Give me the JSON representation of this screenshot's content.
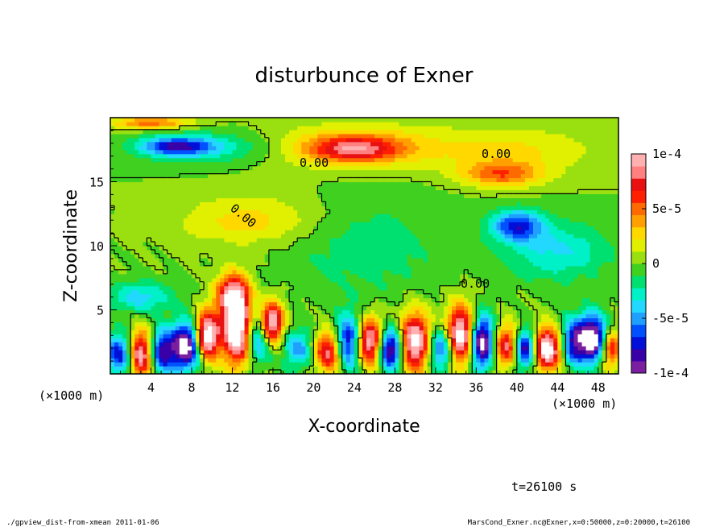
{
  "chart_data": {
    "type": "heatmap",
    "title": "disturbunce of Exner",
    "xlabel": "X-coordinate",
    "ylabel": "Z-coordinate",
    "x_unit_left": "(×1000 m)",
    "x_unit_right": "(×1000 m)",
    "xlim": [
      0,
      50
    ],
    "ylim": [
      0,
      20
    ],
    "x_ticks": [
      4,
      8,
      12,
      16,
      20,
      24,
      28,
      32,
      36,
      40,
      44,
      48
    ],
    "y_ticks": [
      5,
      10,
      15
    ],
    "colorbar": {
      "min": -0.0001,
      "max": 0.0001,
      "tick_values": [
        0.0001,
        5e-05,
        0,
        -5e-05,
        -0.0001
      ],
      "tick_labels": [
        "1e-4",
        "5e-5",
        "0",
        "-5e-5",
        "-1e-4"
      ],
      "colors": [
        "#7a1fa0",
        "#3a00a8",
        "#0010d8",
        "#0050ff",
        "#1fa0ff",
        "#22d8ff",
        "#00f0c8",
        "#00e070",
        "#40d020",
        "#9ae010",
        "#e0f000",
        "#ffd800",
        "#ffa000",
        "#ff6a00",
        "#ff2000",
        "#e81010",
        "#ff8080",
        "#ffb0b0"
      ]
    },
    "contour_labels": [
      "0.00",
      "0.00",
      "0.00",
      "0.00"
    ],
    "blobs": [
      {
        "x": 6.5,
        "z": 17.8,
        "rx": 3.5,
        "rz": 0.7,
        "v": -6.5e-05
      },
      {
        "x": 10,
        "z": 17.7,
        "rx": 7,
        "rz": 1.3,
        "v": -3e-05
      },
      {
        "x": 24,
        "z": 17.6,
        "rx": 4.5,
        "rz": 1.0,
        "v": 6.5e-05
      },
      {
        "x": 24,
        "z": 17.8,
        "rx": 10,
        "rz": 1.8,
        "v": 3e-05
      },
      {
        "x": 38.5,
        "z": 15.6,
        "rx": 4,
        "rz": 1.0,
        "v": 5e-05
      },
      {
        "x": 40,
        "z": 17.5,
        "rx": 8,
        "rz": 1.8,
        "v": 2.2e-05
      },
      {
        "x": 4,
        "z": 19.6,
        "rx": 4,
        "rz": 0.5,
        "v": 5e-05
      },
      {
        "x": 14,
        "z": 12.0,
        "rx": 7,
        "rz": 2.0,
        "v": 2.8e-05
      },
      {
        "x": 40,
        "z": 11.6,
        "rx": 2.5,
        "rz": 1.2,
        "v": -7e-05
      },
      {
        "x": 44,
        "z": 9.6,
        "rx": 5,
        "rz": 2.2,
        "v": -3.5e-05
      },
      {
        "x": 3,
        "z": 6.0,
        "rx": 3,
        "rz": 1.2,
        "v": -4e-05
      },
      {
        "x": 12,
        "z": 6.2,
        "rx": 1.6,
        "rz": 1.6,
        "v": 9e-05
      },
      {
        "x": 25,
        "z": 10,
        "rx": 8,
        "rz": 4,
        "v": -1.8e-05
      },
      {
        "x": 1,
        "z": 1.6,
        "rx": 1.6,
        "rz": 1.6,
        "v": -8e-05
      },
      {
        "x": 3,
        "z": 1.6,
        "rx": 1.3,
        "rz": 1.8,
        "v": 0.00012
      },
      {
        "x": 5,
        "z": 1.8,
        "rx": 1.4,
        "rz": 1.7,
        "v": -9e-05
      },
      {
        "x": 7.5,
        "z": 2.2,
        "rx": 1.4,
        "rz": 1.8,
        "v": -0.00012
      },
      {
        "x": 9.5,
        "z": 3.0,
        "rx": 1.2,
        "rz": 1.8,
        "v": 0.00013
      },
      {
        "x": 12.5,
        "z": 3.5,
        "rx": 1.4,
        "rz": 2.6,
        "v": 0.00014
      },
      {
        "x": 14.5,
        "z": 3.0,
        "rx": 1.3,
        "rz": 2.0,
        "v": -7e-05
      },
      {
        "x": 15.8,
        "z": 4.0,
        "rx": 1.2,
        "rz": 1.6,
        "v": 0.00012
      },
      {
        "x": 18.5,
        "z": 2.0,
        "rx": 1.5,
        "rz": 1.5,
        "v": -5e-05
      },
      {
        "x": 21.5,
        "z": 1.8,
        "rx": 1.4,
        "rz": 1.6,
        "v": 9e-05
      },
      {
        "x": 23.5,
        "z": 2.5,
        "rx": 1.4,
        "rz": 2.0,
        "v": -0.0001
      },
      {
        "x": 25.5,
        "z": 2.5,
        "rx": 1.5,
        "rz": 1.8,
        "v": 0.00012
      },
      {
        "x": 27.5,
        "z": 2.0,
        "rx": 1.3,
        "rz": 1.6,
        "v": -0.00012
      },
      {
        "x": 30,
        "z": 2.5,
        "rx": 1.6,
        "rz": 2.2,
        "v": 0.00012
      },
      {
        "x": 32.5,
        "z": 2.0,
        "rx": 1.4,
        "rz": 1.7,
        "v": -8e-05
      },
      {
        "x": 34.5,
        "z": 3.0,
        "rx": 1.5,
        "rz": 2.2,
        "v": 0.00013
      },
      {
        "x": 36.5,
        "z": 2.5,
        "rx": 1.3,
        "rz": 2.0,
        "v": -0.00013
      },
      {
        "x": 39,
        "z": 2.2,
        "rx": 1.4,
        "rz": 1.6,
        "v": 9e-05
      },
      {
        "x": 40.8,
        "z": 2.0,
        "rx": 1.2,
        "rz": 1.5,
        "v": -0.00011
      },
      {
        "x": 43,
        "z": 2.0,
        "rx": 1.5,
        "rz": 1.6,
        "v": 0.00013
      },
      {
        "x": 45.5,
        "z": 2.5,
        "rx": 1.4,
        "rz": 1.8,
        "v": -8e-05
      },
      {
        "x": 47.5,
        "z": 2.8,
        "rx": 1.4,
        "rz": 1.8,
        "v": -0.00012
      },
      {
        "x": 49.2,
        "z": 2.0,
        "rx": 1.0,
        "rz": 1.5,
        "v": 8e-05
      }
    ]
  },
  "time_label": "t=26100 s",
  "footer_left": "./gpview_dist-from-xmean  2011-01-06",
  "footer_right": "MarsCond_Exner.nc@Exner,x=0:50000,z=0:20000,t=26100"
}
